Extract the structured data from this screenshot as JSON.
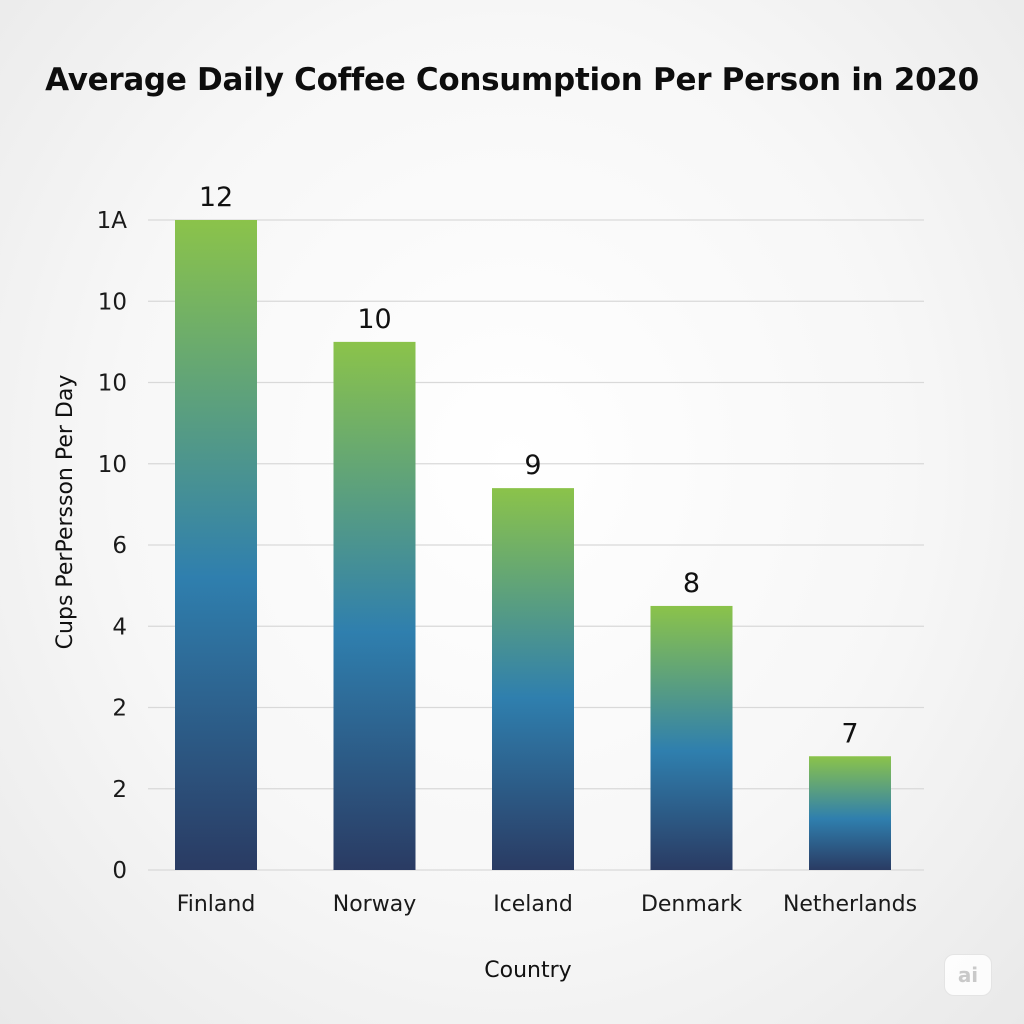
{
  "chart_data": {
    "type": "bar",
    "title": "Average Daily Coffee Consumption Per Person in 2020",
    "xlabel": "Country",
    "ylabel": "Cups PerPersson Per Day",
    "categories": [
      "Finland",
      "Norway",
      "Iceland",
      "Denmark",
      "Netherlands"
    ],
    "values": [
      12,
      10,
      9,
      8,
      7
    ],
    "bar_heights_on_axis": [
      16,
      13,
      9.4,
      6.5,
      2.8
    ],
    "y_tick_labels": [
      "0",
      "2",
      "2",
      "4",
      "6",
      "10",
      "10",
      "10",
      "1A"
    ],
    "ylim": [
      0,
      16
    ],
    "grid": true,
    "colors": {
      "bar_top": "#8bc34a",
      "bar_mid": "#2f7fae",
      "bar_bottom": "#2a3b63"
    }
  },
  "watermark": "ai"
}
